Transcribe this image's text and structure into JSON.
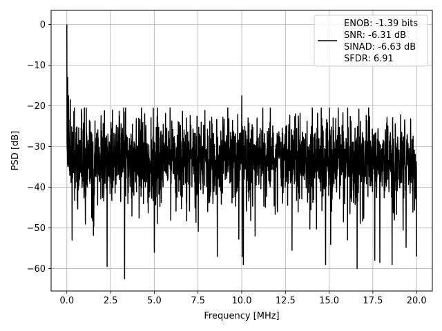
{
  "chart_data": {
    "type": "line",
    "xlabel": "Frequency [MHz]",
    "ylabel": "PSD [dB]",
    "xlim": [
      -0.9,
      20.9
    ],
    "ylim": [
      -65.5,
      3.5
    ],
    "xticks": [
      0.0,
      2.5,
      5.0,
      7.5,
      10.0,
      12.5,
      15.0,
      17.5,
      20.0
    ],
    "xtick_labels": [
      "0.0",
      "2.5",
      "5.0",
      "7.5",
      "10.0",
      "12.5",
      "15.0",
      "17.5",
      "20.0"
    ],
    "yticks": [
      0,
      -10,
      -20,
      -30,
      -40,
      -50,
      -60
    ],
    "ytick_labels": [
      "0",
      "−10",
      "−20",
      "−30",
      "−40",
      "−50",
      "−60"
    ],
    "grid": true,
    "legend_position": "top-right",
    "series": [
      {
        "color": "#000000",
        "legend_lines": [
          "ENOB: -1.39 bits",
          "SNR: -6.31 dB",
          "SINAD: -6.63 dB",
          "SFDR: 6.91"
        ],
        "x_range": [
          0.0,
          20.0
        ],
        "n_points": 2000,
        "noise_floor_db": -33,
        "noise_spread_db": 5,
        "min_db": -62.5,
        "peaks": [
          {
            "x": 0.0,
            "y": 0.0
          },
          {
            "x": 0.05,
            "y": -13.0
          },
          {
            "x": 0.1,
            "y": -17.5
          },
          {
            "x": 0.2,
            "y": -18.5
          },
          {
            "x": 1.0,
            "y": -20.5
          },
          {
            "x": 10.0,
            "y": -17.5
          }
        ],
        "dips": [
          {
            "x": 0.3,
            "y": -53.0
          },
          {
            "x": 2.3,
            "y": -59.5
          },
          {
            "x": 3.3,
            "y": -62.5
          },
          {
            "x": 5.0,
            "y": -56.0
          },
          {
            "x": 8.6,
            "y": -57.0
          },
          {
            "x": 10.1,
            "y": -59.0
          },
          {
            "x": 14.8,
            "y": -59.0
          },
          {
            "x": 16.6,
            "y": -60.0
          },
          {
            "x": 17.9,
            "y": -58.5
          },
          {
            "x": 18.6,
            "y": -59.0
          },
          {
            "x": 20.0,
            "y": -57.0
          }
        ]
      }
    ]
  }
}
